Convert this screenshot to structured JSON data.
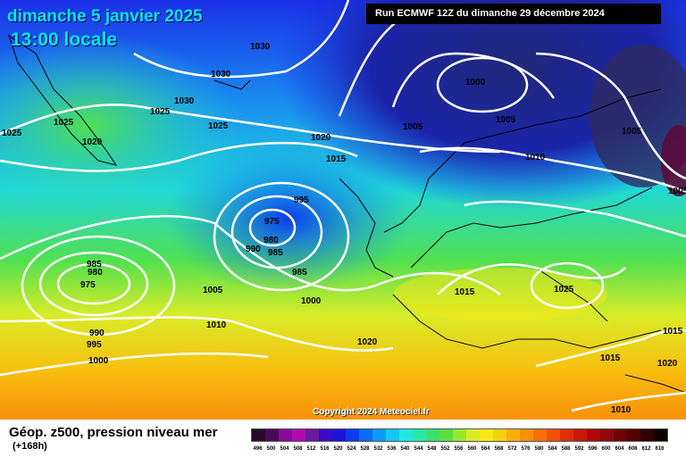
{
  "header": {
    "date": "dimanche 5 janvier 2025",
    "time": "13:00 locale",
    "run": "Run ECMWF 12Z du dimanche 29 décembre 2024"
  },
  "map": {
    "isobar_labels": [
      "1030",
      "1030",
      "1030",
      "1025",
      "1025",
      "1025",
      "1025",
      "1020",
      "1020",
      "1015",
      "1000",
      "1005",
      "1005",
      "1010",
      "1005",
      "1005",
      "995",
      "975",
      "980",
      "990",
      "985",
      "985",
      "1000",
      "985",
      "980",
      "975",
      "990",
      "995",
      "1000",
      "1005",
      "1010",
      "1015",
      "1025",
      "1020",
      "1015",
      "1020",
      "1010",
      "1015"
    ],
    "copyright": "Copyright 2024 Meteociel.fr"
  },
  "legend": {
    "title": "Géop. z500, pression niveau mer",
    "subtitle": "(+168h)",
    "ticks": [
      "496",
      "500",
      "504",
      "508",
      "512",
      "516",
      "520",
      "524",
      "528",
      "532",
      "536",
      "540",
      "544",
      "548",
      "552",
      "556",
      "560",
      "564",
      "568",
      "572",
      "576",
      "580",
      "584",
      "588",
      "592",
      "596",
      "600",
      "604",
      "608",
      "612",
      "616"
    ],
    "colors": [
      "#2a0a2a",
      "#4a0a5a",
      "#8a0a9a",
      "#b00cb0",
      "#6a1aa0",
      "#3a0ac0",
      "#1a14d8",
      "#0a3cf0",
      "#0a6cf8",
      "#0a9cf8",
      "#14c8f4",
      "#20e8e0",
      "#28e8a8",
      "#38e070",
      "#58e040",
      "#98e830",
      "#d8ec28",
      "#f8e818",
      "#f8d010",
      "#f8b008",
      "#f89008",
      "#f87008",
      "#f05008",
      "#e03008",
      "#c81808",
      "#b00808",
      "#900808",
      "#700404",
      "#500202",
      "#300000",
      "#100000"
    ]
  }
}
